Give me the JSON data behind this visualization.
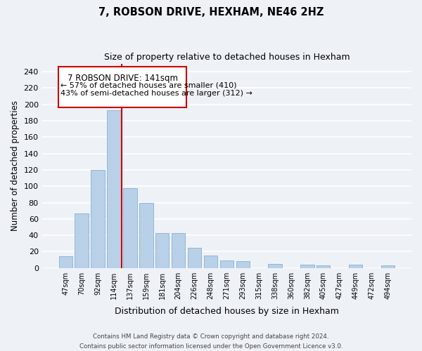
{
  "title": "7, ROBSON DRIVE, HEXHAM, NE46 2HZ",
  "subtitle": "Size of property relative to detached houses in Hexham",
  "xlabel": "Distribution of detached houses by size in Hexham",
  "ylabel": "Number of detached properties",
  "categories": [
    "47sqm",
    "70sqm",
    "92sqm",
    "114sqm",
    "137sqm",
    "159sqm",
    "181sqm",
    "204sqm",
    "226sqm",
    "248sqm",
    "271sqm",
    "293sqm",
    "315sqm",
    "338sqm",
    "360sqm",
    "382sqm",
    "405sqm",
    "427sqm",
    "449sqm",
    "472sqm",
    "494sqm"
  ],
  "values": [
    14,
    67,
    120,
    193,
    98,
    80,
    43,
    43,
    25,
    15,
    9,
    8,
    0,
    5,
    0,
    4,
    3,
    0,
    4,
    0,
    3
  ],
  "bar_color": "#b8d0e8",
  "bar_edge_color": "#8ab0d0",
  "vline_color": "#cc0000",
  "vline_x_index": 4,
  "ylim": [
    0,
    250
  ],
  "yticks": [
    0,
    20,
    40,
    60,
    80,
    100,
    120,
    140,
    160,
    180,
    200,
    220,
    240
  ],
  "annotation_title": "7 ROBSON DRIVE: 141sqm",
  "annotation_line1": "← 57% of detached houses are smaller (410)",
  "annotation_line2": "43% of semi-detached houses are larger (312) →",
  "annotation_box_color": "#ffffff",
  "annotation_box_edge": "#cc0000",
  "footer_line1": "Contains HM Land Registry data © Crown copyright and database right 2024.",
  "footer_line2": "Contains public sector information licensed under the Open Government Licence v3.0.",
  "background_color": "#eef2f7",
  "grid_color": "#ffffff"
}
